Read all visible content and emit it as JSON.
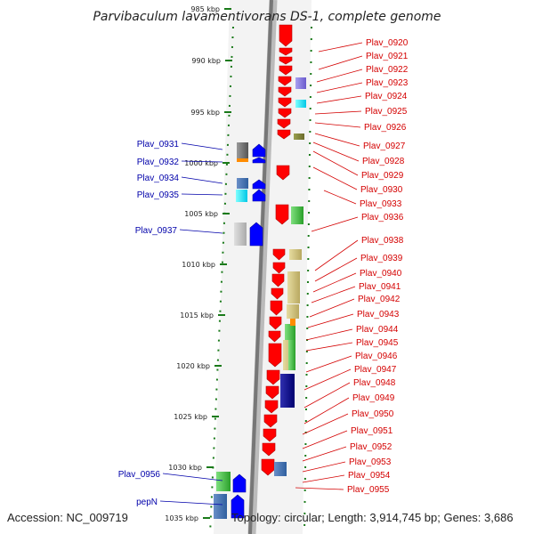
{
  "title": "Parvibaculum lavamentivorans DS-1, complete genome",
  "footer": {
    "accession": "Accession: NC_009719",
    "summary": "Topology: circular; Length: 3,914,745 bp; Genes: 3,686"
  },
  "colors": {
    "forward_gene": "#0000ff",
    "reverse_gene": "#ff0000",
    "label_left": "#0000aa",
    "label_right": "#d40000",
    "tick": "#1a7a1a",
    "backbone": "#888888"
  },
  "chart_data": {
    "type": "genome-map",
    "kbp_ticks": [
      "985 kbp",
      "990 kbp",
      "995 kbp",
      "1000 kbp",
      "1005 kbp",
      "1010 kbp",
      "1015 kbp",
      "1020 kbp",
      "1025 kbp",
      "1030 kbp",
      "1035 kbp"
    ],
    "left_labels": [
      "Plav_0931",
      "Plav_0932",
      "Plav_0934",
      "Plav_0935",
      "Plav_0937",
      "Plav_0956",
      "pepN"
    ],
    "right_labels": [
      "Plav_0920",
      "Plav_0921",
      "Plav_0922",
      "Plav_0923",
      "Plav_0924",
      "Plav_0925",
      "Plav_0926",
      "Plav_0927",
      "Plav_0928",
      "Plav_0929",
      "Plav_0930",
      "Plav_0933",
      "Plav_0936",
      "Plav_0938",
      "Plav_0939",
      "Plav_0940",
      "Plav_0941",
      "Plav_0942",
      "Plav_0943",
      "Plav_0944",
      "Plav_0945",
      "Plav_0946",
      "Plav_0947",
      "Plav_0948",
      "Plav_0949",
      "Plav_0950",
      "Plav_0951",
      "Plav_0952",
      "Plav_0953",
      "Plav_0954",
      "Plav_0955"
    ]
  }
}
